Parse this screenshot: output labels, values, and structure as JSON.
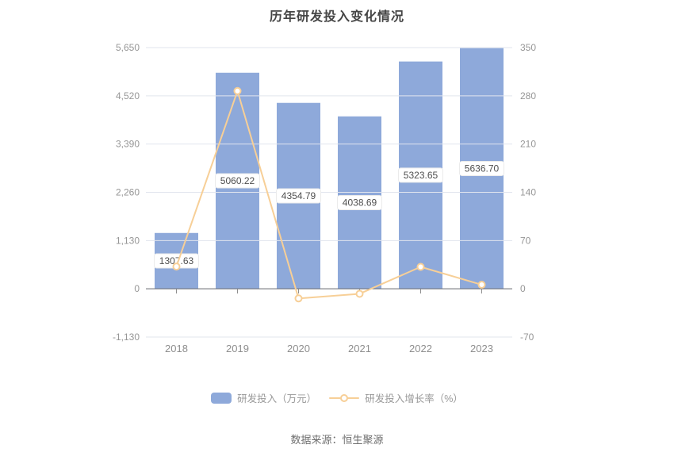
{
  "title": "历年研发投入变化情况",
  "source": "数据来源：恒生聚源",
  "legend": {
    "bar_label": "研发投入（万元）",
    "line_label": "研发投入增长率（%）"
  },
  "colors": {
    "bar": "#8EA9DA",
    "line": "#F7CF97",
    "marker_fill": "#FFFFFF",
    "grid": "#E1E5EE",
    "axis_line": "#63666E",
    "tick_mark": "#8E8E8E",
    "tick_label": "#969696",
    "x_label": "#8E8E8E",
    "bar_value_text": "#4F4F4F",
    "pill_bg": "#FFFFFF",
    "pill_border": "#EBEBEB"
  },
  "chart_data": {
    "type": "combo",
    "title": "历年研发投入变化情况",
    "categories": [
      "2018",
      "2019",
      "2020",
      "2021",
      "2022",
      "2023"
    ],
    "series": [
      {
        "name": "研发投入（万元）",
        "type": "bar",
        "axis": "left",
        "values": [
          1307.63,
          5060.22,
          4354.79,
          4038.69,
          5323.65,
          5636.7
        ],
        "labels": [
          "1307.63",
          "5060.22",
          "4354.79",
          "4038.69",
          "5323.65",
          "5636.70"
        ]
      },
      {
        "name": "研发投入增长率（%）",
        "type": "line",
        "axis": "right",
        "values": [
          32.3,
          286.98,
          -13.94,
          -7.26,
          31.82,
          5.88
        ]
      }
    ],
    "left_axis": {
      "ticks": [
        "5,650",
        "4,520",
        "3,390",
        "2,260",
        "1,130",
        "0",
        "-1,130"
      ],
      "max": 5650,
      "min": -1130
    },
    "right_axis": {
      "ticks": [
        "350",
        "280",
        "210",
        "140",
        "70",
        "0",
        "-70"
      ],
      "max": 350,
      "min": -70
    },
    "grid": true,
    "legend_position": "bottom",
    "xlabel": "",
    "ylabel_left": "研发投入（万元）",
    "ylabel_right": "研发投入增长率（%）"
  }
}
